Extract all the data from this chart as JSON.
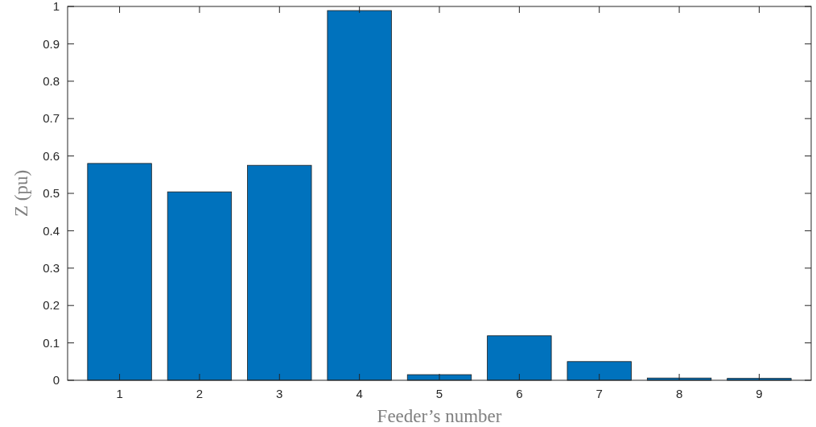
{
  "chart_data": {
    "type": "bar",
    "xlabel": "Feeder’s number",
    "ylabel": "Z (pu)",
    "categories": [
      "1",
      "2",
      "3",
      "4",
      "5",
      "6",
      "7",
      "8",
      "9"
    ],
    "values": [
      0.58,
      0.504,
      0.575,
      0.989,
      0.015,
      0.119,
      0.05,
      0.006,
      0.005
    ],
    "color": "#0072bd",
    "ylim": [
      0,
      1
    ],
    "yticks": [
      0,
      0.1,
      0.2,
      0.3,
      0.4,
      0.5,
      0.6,
      0.7,
      0.8,
      0.9,
      1
    ],
    "grid": false
  }
}
